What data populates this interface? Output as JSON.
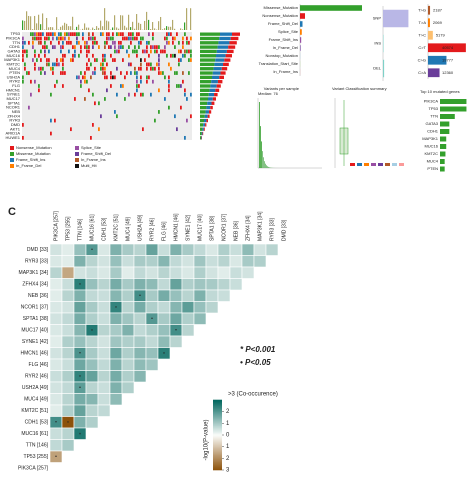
{
  "oncoplot": {
    "genes": [
      "TP53",
      "PIK3CA",
      "TTN",
      "CDH1",
      "GATA3",
      "MUC16",
      "MAP3K1",
      "KMT2C",
      "MUC4",
      "PTEN",
      "USH2A",
      "RYR2",
      "FLG",
      "HMCN1",
      "SYNE1",
      "MUC17",
      "SPTA1",
      "NCOR1",
      "NEB",
      "ZFHX4",
      "RYR3",
      "DMD",
      "AKT1",
      "ARID1A",
      "HUWE1"
    ],
    "legend": [
      "Nonsense_Mutation",
      "Missense_Mutation",
      "Frame_Shift_Ins",
      "In_Frame_Del",
      "Splice_Site",
      "Frame_Shift_Del",
      "In_Frame_Ins",
      "Multi_Hit"
    ]
  },
  "variant_classification": {
    "categories": [
      "Missense_Mutation",
      "Nonsense_Mutation",
      "Frame_Shift_Del",
      "Splice_Site",
      "Frame_Shift_Ins",
      "In_Frame_Del",
      "Nonstop_Mutation",
      "Translation_Start_Site",
      "In_Frame_Ins"
    ],
    "values": [
      62000,
      5000,
      2500,
      1800,
      1200,
      600,
      200,
      150,
      120
    ],
    "xlim": [
      0,
      65000
    ]
  },
  "variant_type": {
    "categories": [
      "SNP",
      "INS",
      "DEL"
    ],
    "values": [
      80000,
      1500,
      3500
    ],
    "xlim": [
      0,
      85000
    ]
  },
  "snv_class": {
    "categories": [
      "T>G",
      "T>A",
      "T>C",
      "C>T",
      "C>G",
      "C>A"
    ],
    "values": [
      2187,
      2069,
      5179,
      40574,
      19777,
      12360
    ],
    "xlim": [
      0,
      45000
    ]
  },
  "variants_per_sample": {
    "title": "Variants per sample",
    "subtitle": "Median: 76"
  },
  "variant_summary": {
    "title": "Variant Classification summary"
  },
  "top_genes": {
    "title": "Top 10 mutated genes",
    "genes": [
      "PIK3CA",
      "TP53",
      "TTN",
      "GATA3",
      "CDH1",
      "MAP3K1",
      "MUC16",
      "KMT2C",
      "MUC4",
      "PTEN"
    ],
    "values": [
      34,
      34,
      19,
      12,
      12,
      8,
      8,
      7,
      6,
      6
    ],
    "xlim": [
      0,
      36
    ]
  },
  "panel_c": {
    "label": "C",
    "columns": [
      "PIK3CA [257]",
      "TP53 [255]",
      "TTN [146]",
      "MUC16 [61]",
      "CDH1 [53]",
      "KMT2C [51]",
      "MUC4 [49]",
      "USH2A [49]",
      "RYR2 [46]",
      "FLG [46]",
      "HMCN1 [46]",
      "SYNE1 [42]",
      "MUC17 [40]",
      "SPTA1 [38]",
      "NCOR1 [37]",
      "NEB [36]",
      "ZFHX4 [34]",
      "MAP3K1 [34]",
      "RYR3 [33]",
      "DMD [33]"
    ],
    "rows": [
      "DMD [33]",
      "RYR3 [33]",
      "MAP3K1 [34]",
      "ZFHX4 [34]",
      "NEB [36]",
      "NCOR1 [37]",
      "SPTA1 [38]",
      "MUC17 [40]",
      "SYNE1 [42]",
      "HMCN1 [46]",
      "FLG [46]",
      "RYR2 [46]",
      "USH2A [49]",
      "MUC4 [49]",
      "KMT2C [51]",
      "CDH1 [53]",
      "MUC16 [61]",
      "TTN [146]",
      "TP53 [255]",
      "PIK3CA [257]"
    ],
    "values": [
      [
        0.5,
        0.3,
        1.2,
        2.0,
        0.4,
        1.5,
        1.0,
        0.8,
        1.8,
        0.6,
        1.5,
        1.0,
        0.7,
        0.4,
        0.9,
        0.6,
        1.3,
        0.5,
        0.8
      ],
      [
        0.4,
        0.3,
        1.5,
        0.8,
        0.5,
        1.2,
        0.6,
        1.0,
        0.9,
        1.4,
        0.7,
        0.5,
        1.1,
        0.6,
        0.8,
        0.4,
        1.0,
        0.9
      ],
      [
        0.8,
        -1.5,
        0.5,
        0.6,
        0.4,
        1.0,
        0.3,
        0.7,
        0.5,
        0.8,
        0.6,
        0.4,
        0.9,
        0.5,
        0.3,
        0.6,
        0.5
      ],
      [
        0.3,
        0.6,
        2.5,
        1.2,
        0.8,
        1.6,
        1.0,
        1.5,
        1.3,
        0.7,
        1.8,
        0.9,
        1.1,
        1.0,
        0.8,
        0.6
      ],
      [
        0.3,
        0.8,
        1.5,
        0.7,
        0.6,
        1.4,
        0.9,
        2.2,
        1.0,
        1.6,
        1.2,
        0.8,
        1.5,
        0.7,
        0.6
      ],
      [
        0.4,
        0.5,
        1.8,
        1.0,
        0.6,
        2.4,
        0.8,
        1.6,
        0.9,
        0.7,
        1.4,
        1.9,
        1.2,
        0.8
      ],
      [
        0.5,
        0.7,
        1.6,
        0.9,
        0.6,
        1.5,
        1.1,
        0.8,
        2.0,
        1.0,
        1.7,
        0.9,
        1.3
      ],
      [
        0.4,
        0.6,
        1.4,
        2.6,
        0.8,
        1.0,
        1.5,
        0.7,
        0.9,
        1.2,
        2.2,
        0.8
      ],
      [
        0.3,
        0.9,
        1.2,
        0.8,
        0.5,
        1.1,
        0.9,
        1.0,
        0.7,
        1.3,
        0.8
      ],
      [
        0.5,
        0.8,
        2.1,
        1.0,
        0.6,
        1.7,
        0.9,
        1.4,
        1.2,
        2.5
      ],
      [
        0.4,
        0.6,
        1.7,
        1.2,
        0.7,
        1.5,
        0.8,
        1.3,
        1.1
      ],
      [
        0.6,
        0.9,
        2.4,
        1.8,
        0.8,
        1.6,
        0.9,
        1.4
      ],
      [
        0.5,
        0.7,
        1.9,
        0.8,
        0.6,
        1.5,
        0.9
      ],
      [
        0.4,
        0.8,
        1.6,
        1.4,
        0.6,
        1.3
      ],
      [
        0.3,
        0.9,
        1.8,
        0.8,
        0.7
      ],
      [
        2.2,
        -3.0,
        1.5,
        0.9
      ],
      [
        0.6,
        0.8,
        2.6
      ],
      [
        0.7,
        1.0
      ],
      [
        -1.6
      ],
      []
    ],
    "marks": [
      {
        "row": 0,
        "col": 3,
        "symbol": "•"
      },
      {
        "row": 3,
        "col": 2,
        "symbol": "*"
      },
      {
        "row": 4,
        "col": 7,
        "symbol": "•"
      },
      {
        "row": 5,
        "col": 5,
        "symbol": "*"
      },
      {
        "row": 6,
        "col": 8,
        "symbol": "•"
      },
      {
        "row": 7,
        "col": 3,
        "symbol": "*"
      },
      {
        "row": 7,
        "col": 10,
        "symbol": "•"
      },
      {
        "row": 9,
        "col": 2,
        "symbol": "•"
      },
      {
        "row": 9,
        "col": 9,
        "symbol": "*"
      },
      {
        "row": 11,
        "col": 2,
        "symbol": "*"
      },
      {
        "row": 12,
        "col": 2,
        "symbol": "•"
      },
      {
        "row": 15,
        "col": 0,
        "symbol": "•"
      },
      {
        "row": 15,
        "col": 1,
        "symbol": "*"
      },
      {
        "row": 16,
        "col": 2,
        "symbol": "*"
      },
      {
        "row": 18,
        "col": 0,
        "symbol": "•"
      }
    ],
    "annotations": [
      "* P<0.001",
      "• P<0.05"
    ],
    "colorbar": {
      "title": ">3 (Co-occurence)",
      "axis_label": "-log10(P-value)",
      "lim": [
        -3,
        3
      ],
      "ticks": [
        2,
        1,
        0,
        {
          "value": -1,
          "label": "1"
        },
        {
          "value": -2,
          "label": "2"
        },
        {
          "value": -3,
          "label": "3"
        }
      ]
    }
  }
}
